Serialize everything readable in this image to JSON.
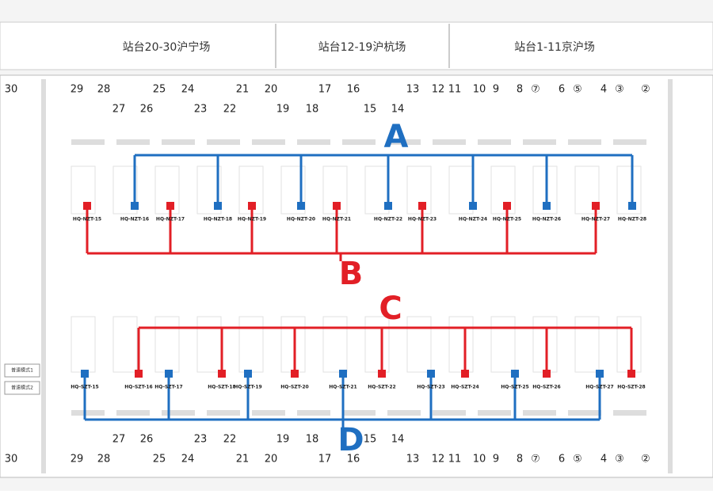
{
  "header": {
    "tabs": [
      "站台20-30沪宁场",
      "站台12-19沪杭场",
      "站台1-11京沪场"
    ]
  },
  "top_tracks": {
    "row1": [
      "29",
      "28",
      "25",
      "24",
      "21",
      "20",
      "17",
      "16",
      "13",
      "12",
      "11",
      "10",
      "9",
      "8",
      "⑦",
      "6",
      "⑤",
      "4",
      "③",
      "②"
    ],
    "row2": [
      "27",
      "26",
      "23",
      "22",
      "19",
      "18",
      "15",
      "14"
    ],
    "side": "30"
  },
  "bottom_tracks": {
    "row1": [
      "27",
      "26",
      "23",
      "22",
      "19",
      "18",
      "15",
      "14"
    ],
    "row2": [
      "29",
      "28",
      "25",
      "24",
      "21",
      "20",
      "17",
      "16",
      "13",
      "12",
      "11",
      "10",
      "9",
      "8",
      "⑦",
      "6",
      "⑤",
      "4",
      "③",
      "②"
    ],
    "side": "30"
  },
  "groups": [
    "A",
    "B",
    "C",
    "D"
  ],
  "top_devices": [
    "HQ-NZT-15",
    "HQ-NZT-16",
    "HQ-NZT-17",
    "HQ-NZT-18",
    "HQ-NZT-19",
    "HQ-NZT-20",
    "HQ-NZT-21",
    "HQ-NZT-22",
    "HQ-NZT-23",
    "HQ-NZT-24",
    "HQ-NZT-25",
    "HQ-NZT-26",
    "HQ-NZT-27",
    "HQ-NZT-28"
  ],
  "bottom_devices": [
    "HQ-SZT-15",
    "HQ-SZT-16",
    "HQ-SZT-17",
    "HQ-SZT-18",
    "HQ-SZT-19",
    "HQ-SZT-20",
    "HQ-SZT-21",
    "HQ-SZT-22",
    "HQ-SZT-23",
    "HQ-SZT-24",
    "HQ-SZT-25",
    "HQ-SZT-26",
    "HQ-SZT-27",
    "HQ-SZT-28"
  ],
  "buttons": [
    "普速模式1",
    "普速模式2"
  ]
}
